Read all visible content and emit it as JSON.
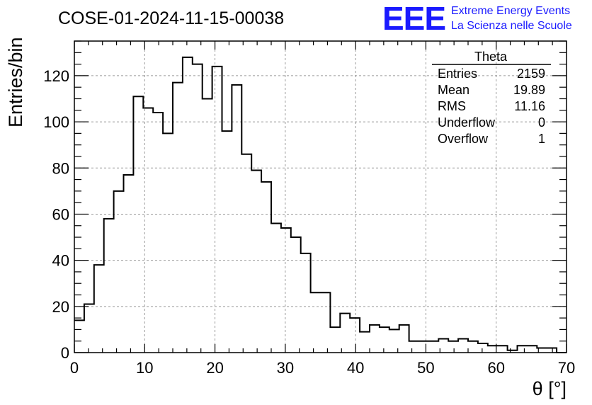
{
  "chart_data": {
    "type": "histogram",
    "title": "COSE-01-2024-11-15-00038",
    "xlabel": "θ [°]",
    "ylabel": "Entries/bin",
    "xlim": [
      0,
      70
    ],
    "ylim": [
      0,
      135
    ],
    "grid": true,
    "xticks": [
      0,
      10,
      20,
      30,
      40,
      50,
      60,
      70
    ],
    "yticks": [
      0,
      20,
      40,
      60,
      80,
      100,
      120
    ],
    "bin_width": 1.4,
    "bin_start": 0,
    "values": [
      14,
      21,
      38,
      58,
      70,
      77,
      111,
      106,
      104,
      95,
      117,
      128,
      125,
      110,
      124,
      96,
      116,
      86,
      79,
      74,
      56,
      54,
      50,
      43,
      26,
      26,
      11,
      17,
      15,
      9,
      12,
      11,
      10,
      12,
      5,
      5,
      5,
      6,
      5,
      6,
      5,
      4,
      3,
      3,
      1,
      3,
      3,
      2,
      2,
      0
    ]
  },
  "stats_box": {
    "name": "Theta",
    "rows": [
      {
        "label": "Entries",
        "value": "2159"
      },
      {
        "label": "Mean",
        "value": "19.89"
      },
      {
        "label": "RMS",
        "value": "11.16"
      },
      {
        "label": "Underflow",
        "value": "0"
      },
      {
        "label": "Overflow",
        "value": "1"
      }
    ]
  },
  "logo": {
    "mark": "EEE",
    "line1": "Extreme Energy Events",
    "line2": "La Scienza nelle Scuole"
  }
}
